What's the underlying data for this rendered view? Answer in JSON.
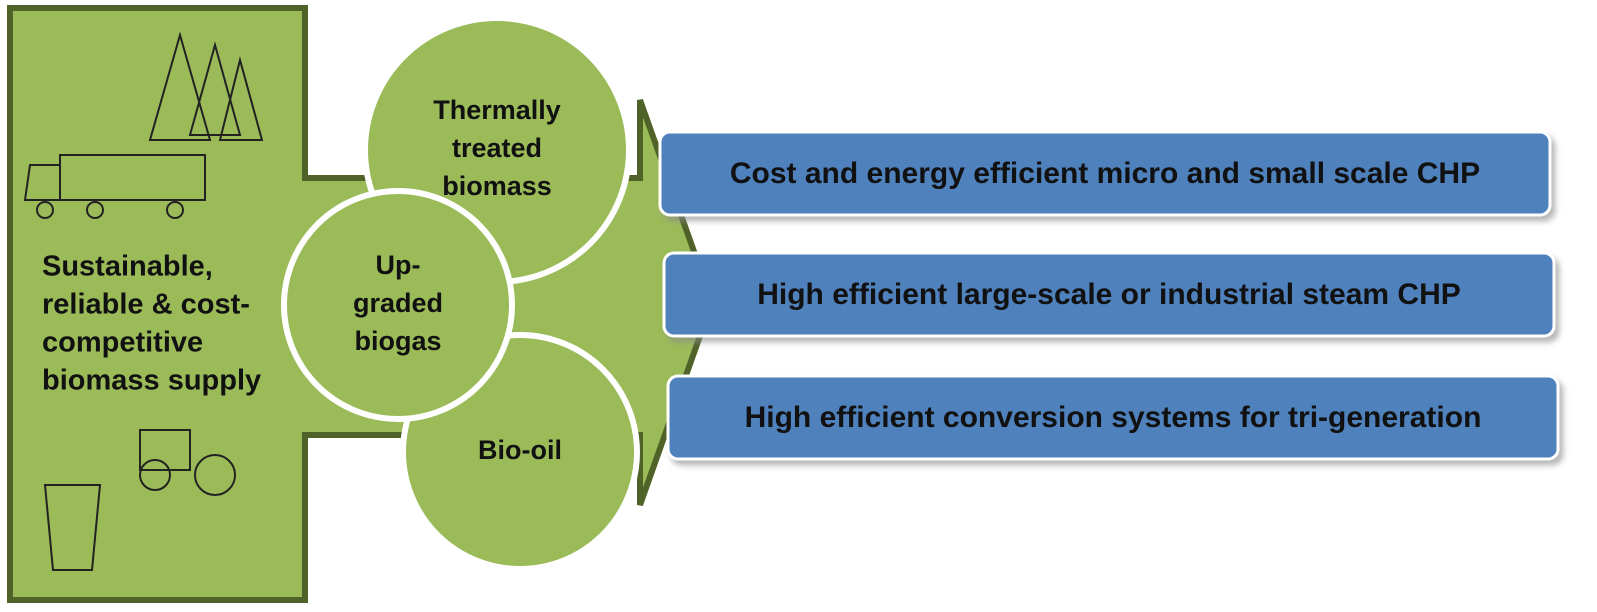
{
  "source": {
    "lines": [
      "Sustainable,",
      "reliable & cost-",
      "competitive",
      "biomass supply"
    ]
  },
  "intermediates": [
    {
      "lines": [
        "Thermally",
        "treated",
        "biomass"
      ]
    },
    {
      "lines": [
        "Up-",
        "graded",
        "biogas"
      ]
    },
    {
      "lines": [
        "Bio-oil"
      ]
    }
  ],
  "outputs": [
    "Cost and energy efficient micro and small scale CHP",
    "High efficient large-scale or industrial steam CHP",
    "High efficient conversion systems for tri-generation"
  ]
}
